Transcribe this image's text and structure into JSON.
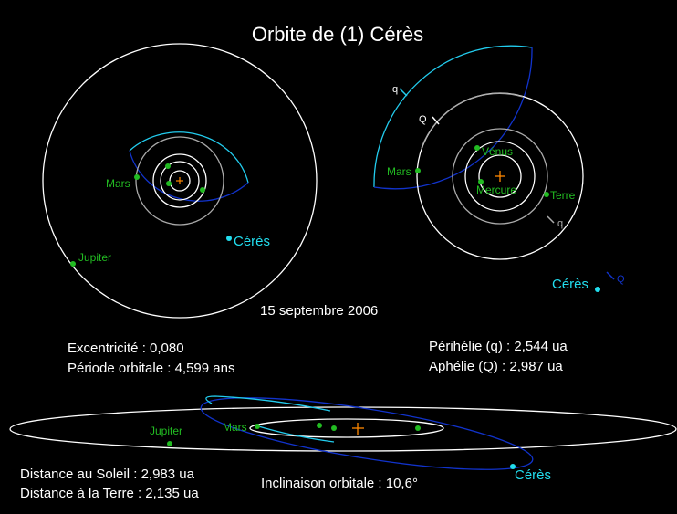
{
  "title": "Orbite de (1) Cérès",
  "date": "15 septembre 2006",
  "stats": {
    "eccentricity": "Excentricité : 0,080",
    "period": "Période orbitale : 4,599 ans",
    "perihelion": "Périhélie (q) : 2,544 ua",
    "aphelion": "Aphélie (Q) : 2,987 ua",
    "sun_distance": "Distance au Soleil : 2,983 ua",
    "earth_distance": "Distance à la Terre : 2,135 ua",
    "inclination": "Inclinaison orbitale : 10,6°"
  },
  "labels": {
    "mars": "Mars",
    "jupiter": "Jupiter",
    "ceres": "Cérès",
    "venus": "Vénus",
    "mercury": "Mercure",
    "earth": "Terre",
    "q": "q",
    "Q": "Q"
  },
  "colors": {
    "background": "#000000",
    "planet": "#22bb22",
    "ceres": "#22ddee",
    "orbit_near": "#22ccee",
    "orbit_far": "#1133cc",
    "orbit_planet": "#ffffff",
    "orbit_grey": "#aaaaaa",
    "sun": "#ff8800"
  }
}
